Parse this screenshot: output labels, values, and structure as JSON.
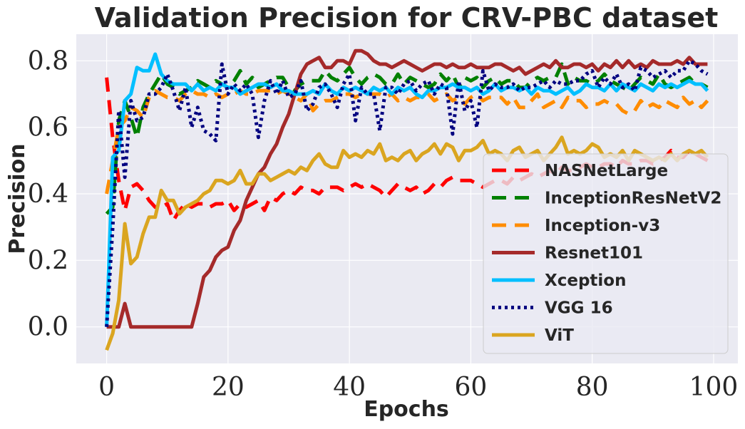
{
  "chart_data": {
    "type": "line",
    "title": "Validation Precision for CRV-PBC dataset",
    "xlabel": "Epochs",
    "ylabel": "Precision",
    "xlim": [
      -5,
      104
    ],
    "ylim": [
      -0.11,
      0.88
    ],
    "xticks": [
      0,
      20,
      40,
      60,
      80,
      100
    ],
    "yticks": [
      0.0,
      0.2,
      0.4,
      0.6,
      0.8
    ],
    "xtick_labels": [
      "0",
      "20",
      "40",
      "60",
      "80",
      "100"
    ],
    "ytick_labels": [
      "0.0",
      "0.2",
      "0.4",
      "0.6",
      "0.8"
    ],
    "grid": true,
    "legend_position": "lower-right",
    "x": [
      0,
      1,
      2,
      3,
      4,
      5,
      6,
      7,
      8,
      9,
      10,
      11,
      12,
      13,
      14,
      15,
      16,
      17,
      18,
      19,
      20,
      21,
      22,
      23,
      24,
      25,
      26,
      27,
      28,
      29,
      30,
      31,
      32,
      33,
      34,
      35,
      36,
      37,
      38,
      39,
      40,
      41,
      42,
      43,
      44,
      45,
      46,
      47,
      48,
      49,
      50,
      51,
      52,
      53,
      54,
      55,
      56,
      57,
      58,
      59,
      60,
      61,
      62,
      63,
      64,
      65,
      66,
      67,
      68,
      69,
      70,
      71,
      72,
      73,
      74,
      75,
      76,
      77,
      78,
      79,
      80,
      81,
      82,
      83,
      84,
      85,
      86,
      87,
      88,
      89,
      90,
      91,
      92,
      93,
      94,
      95,
      96,
      97,
      98,
      99
    ],
    "series": [
      {
        "name": "NASNetLarge",
        "color": "#ff0000",
        "dash": "20,12",
        "values": [
          0.75,
          0.57,
          0.44,
          0.35,
          0.42,
          0.43,
          0.41,
          0.38,
          0.36,
          0.36,
          0.37,
          0.32,
          0.35,
          0.37,
          0.36,
          0.37,
          0.37,
          0.36,
          0.37,
          0.37,
          0.38,
          0.35,
          0.37,
          0.36,
          0.37,
          0.38,
          0.35,
          0.39,
          0.38,
          0.4,
          0.41,
          0.4,
          0.42,
          0.41,
          0.41,
          0.4,
          0.42,
          0.42,
          0.42,
          0.41,
          0.42,
          0.43,
          0.42,
          0.43,
          0.42,
          0.41,
          0.39,
          0.41,
          0.43,
          0.42,
          0.41,
          0.42,
          0.4,
          0.41,
          0.43,
          0.42,
          0.44,
          0.45,
          0.44,
          0.44,
          0.44,
          0.43,
          0.42,
          0.43,
          0.44,
          0.44,
          0.43,
          0.45,
          0.44,
          0.45,
          0.46,
          0.45,
          0.46,
          0.47,
          0.46,
          0.48,
          0.47,
          0.47,
          0.48,
          0.49,
          0.48,
          0.48,
          0.49,
          0.49,
          0.48,
          0.5,
          0.49,
          0.49,
          0.5,
          0.5,
          0.49,
          0.5,
          0.51,
          0.53,
          0.51,
          0.51,
          0.53,
          0.52,
          0.51,
          0.5
        ]
      },
      {
        "name": "InceptionResNetV2",
        "color": "#008000",
        "dash": "20,12",
        "values": [
          0.34,
          0.36,
          0.62,
          0.68,
          0.63,
          0.57,
          0.66,
          0.7,
          0.73,
          0.76,
          0.73,
          0.72,
          0.7,
          0.71,
          0.72,
          0.74,
          0.73,
          0.72,
          0.74,
          0.73,
          0.72,
          0.74,
          0.77,
          0.73,
          0.75,
          0.72,
          0.73,
          0.74,
          0.75,
          0.75,
          0.72,
          0.71,
          0.73,
          0.74,
          0.74,
          0.74,
          0.77,
          0.75,
          0.74,
          0.76,
          0.78,
          0.75,
          0.73,
          0.75,
          0.76,
          0.75,
          0.73,
          0.73,
          0.76,
          0.73,
          0.75,
          0.74,
          0.73,
          0.72,
          0.73,
          0.76,
          0.74,
          0.76,
          0.72,
          0.75,
          0.74,
          0.75,
          0.72,
          0.74,
          0.75,
          0.73,
          0.74,
          0.74,
          0.72,
          0.72,
          0.74,
          0.75,
          0.74,
          0.75,
          0.75,
          0.79,
          0.73,
          0.75,
          0.74,
          0.74,
          0.73,
          0.74,
          0.76,
          0.74,
          0.73,
          0.72,
          0.71,
          0.73,
          0.75,
          0.74,
          0.73,
          0.76,
          0.73,
          0.72,
          0.73,
          0.74,
          0.75,
          0.73,
          0.73,
          0.72
        ]
      },
      {
        "name": "Inception-v3",
        "color": "#ff8c00",
        "dash": "20,12",
        "values": [
          0.4,
          0.5,
          0.6,
          0.62,
          0.66,
          0.65,
          0.63,
          0.69,
          0.71,
          0.7,
          0.69,
          0.69,
          0.68,
          0.7,
          0.71,
          0.7,
          0.7,
          0.69,
          0.7,
          0.69,
          0.7,
          0.7,
          0.71,
          0.7,
          0.7,
          0.71,
          0.71,
          0.71,
          0.7,
          0.71,
          0.7,
          0.69,
          0.68,
          0.7,
          0.65,
          0.67,
          0.68,
          0.68,
          0.69,
          0.7,
          0.7,
          0.69,
          0.7,
          0.7,
          0.7,
          0.7,
          0.69,
          0.7,
          0.68,
          0.69,
          0.68,
          0.69,
          0.69,
          0.7,
          0.68,
          0.69,
          0.7,
          0.68,
          0.69,
          0.67,
          0.69,
          0.7,
          0.68,
          0.69,
          0.69,
          0.69,
          0.67,
          0.69,
          0.66,
          0.66,
          0.68,
          0.7,
          0.66,
          0.67,
          0.68,
          0.66,
          0.69,
          0.68,
          0.68,
          0.66,
          0.67,
          0.67,
          0.68,
          0.67,
          0.67,
          0.65,
          0.64,
          0.65,
          0.68,
          0.66,
          0.67,
          0.66,
          0.68,
          0.67,
          0.66,
          0.69,
          0.67,
          0.68,
          0.66,
          0.68
        ]
      },
      {
        "name": "Resnet101",
        "color": "#a52a2a",
        "dash": "",
        "values": [
          0.0,
          0.0,
          0.0,
          0.07,
          0.0,
          0.0,
          0.0,
          0.0,
          0.0,
          0.0,
          0.0,
          0.0,
          0.0,
          0.0,
          0.0,
          0.07,
          0.15,
          0.17,
          0.21,
          0.23,
          0.24,
          0.29,
          0.32,
          0.38,
          0.42,
          0.46,
          0.48,
          0.52,
          0.55,
          0.6,
          0.64,
          0.7,
          0.76,
          0.79,
          0.8,
          0.81,
          0.78,
          0.78,
          0.8,
          0.8,
          0.79,
          0.83,
          0.83,
          0.82,
          0.8,
          0.79,
          0.79,
          0.78,
          0.79,
          0.8,
          0.79,
          0.78,
          0.77,
          0.78,
          0.79,
          0.79,
          0.78,
          0.79,
          0.78,
          0.78,
          0.79,
          0.78,
          0.78,
          0.78,
          0.79,
          0.79,
          0.78,
          0.77,
          0.78,
          0.76,
          0.77,
          0.78,
          0.79,
          0.78,
          0.8,
          0.78,
          0.78,
          0.79,
          0.79,
          0.78,
          0.79,
          0.77,
          0.79,
          0.78,
          0.8,
          0.78,
          0.8,
          0.78,
          0.79,
          0.78,
          0.8,
          0.79,
          0.79,
          0.79,
          0.8,
          0.79,
          0.81,
          0.79,
          0.79,
          0.79
        ]
      },
      {
        "name": "Xception",
        "color": "#00bfff",
        "dash": "",
        "values": [
          0.0,
          0.51,
          0.53,
          0.68,
          0.7,
          0.78,
          0.77,
          0.77,
          0.82,
          0.76,
          0.74,
          0.73,
          0.73,
          0.73,
          0.71,
          0.73,
          0.71,
          0.72,
          0.71,
          0.73,
          0.72,
          0.72,
          0.7,
          0.71,
          0.72,
          0.73,
          0.73,
          0.72,
          0.73,
          0.71,
          0.71,
          0.7,
          0.7,
          0.7,
          0.71,
          0.7,
          0.73,
          0.71,
          0.7,
          0.72,
          0.71,
          0.72,
          0.71,
          0.7,
          0.72,
          0.71,
          0.72,
          0.7,
          0.72,
          0.71,
          0.72,
          0.7,
          0.69,
          0.71,
          0.71,
          0.72,
          0.72,
          0.73,
          0.72,
          0.72,
          0.71,
          0.72,
          0.7,
          0.71,
          0.73,
          0.71,
          0.72,
          0.72,
          0.71,
          0.72,
          0.7,
          0.72,
          0.71,
          0.71,
          0.7,
          0.71,
          0.72,
          0.7,
          0.71,
          0.73,
          0.72,
          0.72,
          0.71,
          0.73,
          0.71,
          0.73,
          0.72,
          0.71,
          0.73,
          0.72,
          0.71,
          0.73,
          0.72,
          0.73,
          0.72,
          0.73,
          0.74,
          0.73,
          0.73,
          0.71
        ]
      },
      {
        "name": "VGG 16",
        "color": "#000080",
        "dash": "4,5",
        "values": [
          0.0,
          0.3,
          0.65,
          0.45,
          0.68,
          0.62,
          0.63,
          0.7,
          0.7,
          0.72,
          0.76,
          0.71,
          0.65,
          0.72,
          0.6,
          0.66,
          0.59,
          0.58,
          0.56,
          0.79,
          0.7,
          0.73,
          0.71,
          0.73,
          0.7,
          0.57,
          0.68,
          0.74,
          0.7,
          0.74,
          0.69,
          0.7,
          0.74,
          0.65,
          0.67,
          0.72,
          0.73,
          0.7,
          0.66,
          0.73,
          0.76,
          0.62,
          0.72,
          0.7,
          0.7,
          0.59,
          0.72,
          0.72,
          0.7,
          0.73,
          0.74,
          0.71,
          0.73,
          0.74,
          0.7,
          0.73,
          0.72,
          0.58,
          0.74,
          0.65,
          0.68,
          0.6,
          0.77,
          0.71,
          0.73,
          0.72,
          0.72,
          0.73,
          0.71,
          0.72,
          0.72,
          0.73,
          0.74,
          0.72,
          0.74,
          0.73,
          0.73,
          0.74,
          0.74,
          0.76,
          0.77,
          0.72,
          0.75,
          0.73,
          0.76,
          0.72,
          0.73,
          0.71,
          0.78,
          0.77,
          0.75,
          0.76,
          0.77,
          0.75,
          0.77,
          0.77,
          0.8,
          0.79,
          0.77,
          0.76
        ]
      },
      {
        "name": "ViT",
        "color": "#daa520",
        "dash": "",
        "values": [
          -0.07,
          -0.02,
          0.08,
          0.31,
          0.19,
          0.21,
          0.28,
          0.33,
          0.33,
          0.41,
          0.38,
          0.38,
          0.34,
          0.36,
          0.37,
          0.38,
          0.4,
          0.41,
          0.44,
          0.44,
          0.43,
          0.44,
          0.47,
          0.43,
          0.43,
          0.46,
          0.46,
          0.44,
          0.45,
          0.46,
          0.47,
          0.46,
          0.48,
          0.47,
          0.5,
          0.52,
          0.49,
          0.48,
          0.48,
          0.53,
          0.51,
          0.52,
          0.51,
          0.53,
          0.52,
          0.55,
          0.5,
          0.51,
          0.5,
          0.52,
          0.53,
          0.5,
          0.52,
          0.53,
          0.55,
          0.52,
          0.55,
          0.54,
          0.5,
          0.53,
          0.53,
          0.54,
          0.56,
          0.52,
          0.53,
          0.52,
          0.5,
          0.53,
          0.54,
          0.51,
          0.52,
          0.53,
          0.5,
          0.52,
          0.54,
          0.57,
          0.52,
          0.53,
          0.52,
          0.53,
          0.55,
          0.54,
          0.51,
          0.52,
          0.51,
          0.53,
          0.5,
          0.53,
          0.52,
          0.51,
          0.5,
          0.51,
          0.5,
          0.52,
          0.5,
          0.52,
          0.53,
          0.52,
          0.53,
          0.51
        ]
      }
    ]
  }
}
